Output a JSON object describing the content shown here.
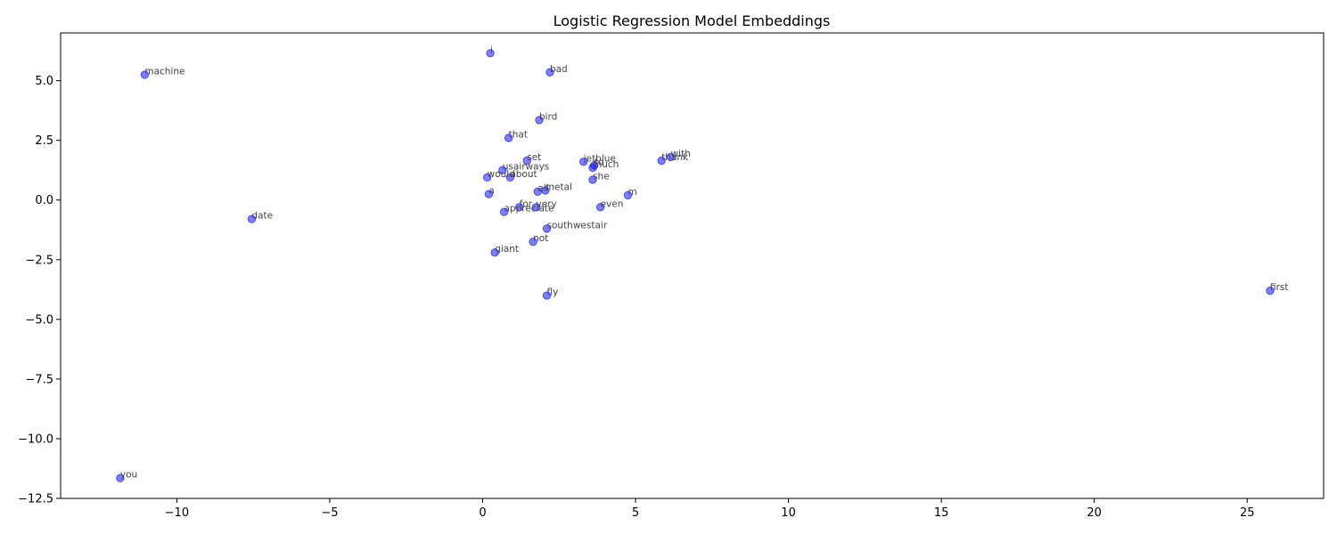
{
  "chart_data": {
    "type": "scatter",
    "title": "Logistic Regression Model Embeddings",
    "xlabel": "",
    "ylabel": "",
    "xlim": [
      -13.8,
      27.5
    ],
    "ylim": [
      -12.5,
      7.0
    ],
    "xticks": [
      -10,
      -5,
      0,
      5,
      10,
      15,
      20,
      25
    ],
    "yticks": [
      -12.5,
      -10.0,
      -7.5,
      -5.0,
      -2.5,
      0.0,
      2.5,
      5.0
    ],
    "xtick_labels": [
      "−10",
      "−5",
      "0",
      "5",
      "10",
      "15",
      "20",
      "25"
    ],
    "ytick_labels": [
      "−12.5",
      "−10.0",
      "−7.5",
      "−5.0",
      "−2.5",
      "0.0",
      "2.5",
      "5.0"
    ],
    "grid": false,
    "marker_color": "#0000ff",
    "points": [
      {
        "label": "i",
        "x": 0.25,
        "y": 6.15
      },
      {
        "label": "machine",
        "x": -11.05,
        "y": 5.25
      },
      {
        "label": "bad",
        "x": 2.2,
        "y": 5.35
      },
      {
        "label": "bird",
        "x": 1.85,
        "y": 3.35
      },
      {
        "label": "that",
        "x": 0.85,
        "y": 2.6
      },
      {
        "label": "with",
        "x": 6.15,
        "y": 1.8
      },
      {
        "label": "thank",
        "x": 5.85,
        "y": 1.65
      },
      {
        "label": "jetblue",
        "x": 3.3,
        "y": 1.6
      },
      {
        "label": "set",
        "x": 1.45,
        "y": 1.65
      },
      {
        "label": "to",
        "x": 3.65,
        "y": 1.45
      },
      {
        "label": "much",
        "x": 3.6,
        "y": 1.35
      },
      {
        "label": "usairways",
        "x": 0.65,
        "y": 1.25
      },
      {
        "label": "would",
        "x": 0.15,
        "y": 0.95
      },
      {
        "label": "about",
        "x": 0.9,
        "y": 0.95
      },
      {
        "label": "she",
        "x": 3.6,
        "y": 0.85
      },
      {
        "label": "all",
        "x": 1.8,
        "y": 0.35
      },
      {
        "label": "metal",
        "x": 2.05,
        "y": 0.4
      },
      {
        "label": "m",
        "x": 4.75,
        "y": 0.2
      },
      {
        "label": "a",
        "x": 0.2,
        "y": 0.25
      },
      {
        "label": "for",
        "x": 1.2,
        "y": -0.3
      },
      {
        "label": "very",
        "x": 1.75,
        "y": -0.3
      },
      {
        "label": "even",
        "x": 3.85,
        "y": -0.3
      },
      {
        "label": "appreciate",
        "x": 0.7,
        "y": -0.5
      },
      {
        "label": "date",
        "x": -7.55,
        "y": -0.8
      },
      {
        "label": "southwestair",
        "x": 2.1,
        "y": -1.2
      },
      {
        "label": "not",
        "x": 1.65,
        "y": -1.75
      },
      {
        "label": "giant",
        "x": 0.4,
        "y": -2.2
      },
      {
        "label": "fly",
        "x": 2.1,
        "y": -4.0
      },
      {
        "label": "first",
        "x": 25.75,
        "y": -3.8
      },
      {
        "label": "you",
        "x": -11.85,
        "y": -11.65
      }
    ]
  }
}
